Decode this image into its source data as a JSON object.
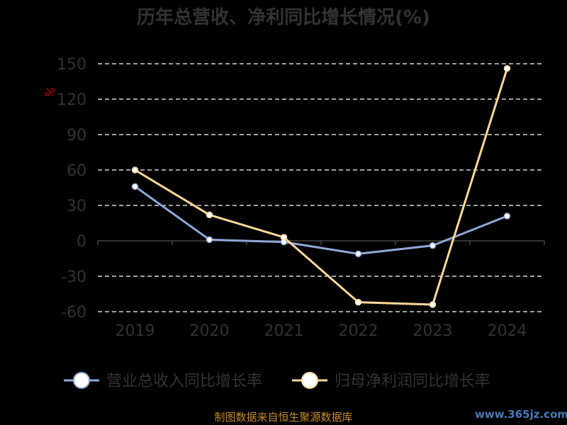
{
  "chart_data": {
    "type": "line",
    "title": "历年总营收、净利同比增长情况(%)",
    "ylabel": "%",
    "xlabel": "",
    "categories": [
      "2019",
      "2020",
      "2021",
      "2022",
      "2023",
      "2024"
    ],
    "ylim": [
      -60,
      150
    ],
    "yticks": [
      "150",
      "120",
      "90",
      "60",
      "30",
      "0",
      "-30",
      "-60"
    ],
    "grid": true,
    "legend_position": "bottom",
    "series": [
      {
        "name": "营业总收入同比增长率",
        "color": "#8fa8d8",
        "values": [
          46,
          1,
          -1,
          -11,
          -4,
          21
        ]
      },
      {
        "name": "归母净利润同比增长率",
        "color": "#ffd89a",
        "values": [
          60,
          22,
          3,
          -52,
          -54,
          146
        ]
      }
    ]
  },
  "footer": {
    "source": "制图数据来自恒生聚源数据库",
    "watermark": "www.365jz.com"
  }
}
